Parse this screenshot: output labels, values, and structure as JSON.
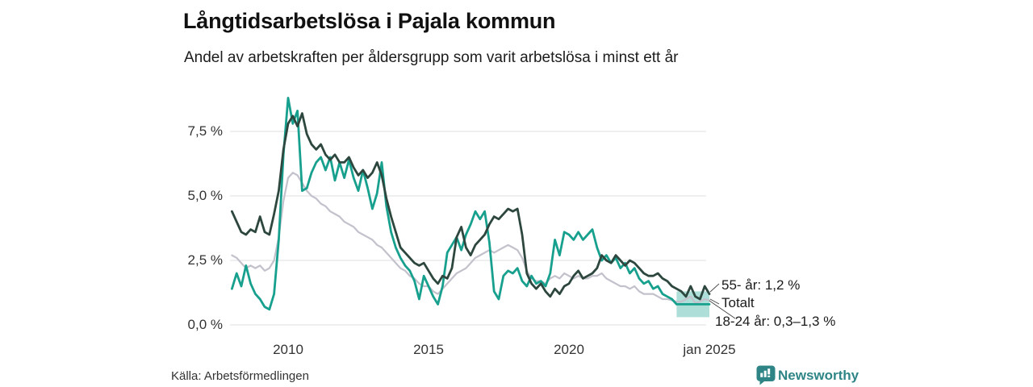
{
  "header": {
    "title": "Långtidsarbetslösa i Pajala kommun",
    "subtitle": "Andel av arbetskraften per åldersgrupp som varit arbetslösa i minst ett år"
  },
  "footer": {
    "source": "Källa: Arbetsförmedlingen",
    "brand": "Newsworthy"
  },
  "colors": {
    "series_55": "#2d473f",
    "series_total": "#c3c1cb",
    "series_18_24": "#18a08e",
    "band_fill": "#18a08e",
    "gridline": "#e5e5e9",
    "connector": "#444444",
    "brand_teal": "#2f8586",
    "text": "#1a1a1a"
  },
  "chart_data": {
    "type": "line",
    "title": "Långtidsarbetslösa i Pajala kommun",
    "subtitle": "Andel av arbetskraften per åldersgrupp som varit arbetslösa i minst ett år",
    "unit": "% av arbetskraften",
    "x_start": 2008,
    "points_per_year": 6,
    "x_axis": {
      "ticks": [
        {
          "label": "2010",
          "t": 2010
        },
        {
          "label": "2015",
          "t": 2015
        },
        {
          "label": "2020",
          "t": 2020
        },
        {
          "label": "jan 2025",
          "t": 2025
        }
      ]
    },
    "y_axis": {
      "range": [
        0,
        9
      ],
      "grid": true,
      "ticks": [
        {
          "label": "0,0 %",
          "value": 0
        },
        {
          "label": "2,5 %",
          "value": 2.5
        },
        {
          "label": "5,0 %",
          "value": 5
        },
        {
          "label": "7,5 %",
          "value": 7.5
        }
      ]
    },
    "series": [
      {
        "key": "55",
        "name": "55- år",
        "color": "#2d473f",
        "width": 2.8,
        "last_value": 1.2,
        "values": [
          4.4,
          4.0,
          3.6,
          3.5,
          3.7,
          3.6,
          4.2,
          3.6,
          3.5,
          4.3,
          5.2,
          6.8,
          7.8,
          8.1,
          7.7,
          8.2,
          7.4,
          7.0,
          6.8,
          7.0,
          6.6,
          6.4,
          6.6,
          6.3,
          6.3,
          6.5,
          6.1,
          5.8,
          6.0,
          5.7,
          5.9,
          6.3,
          5.8,
          4.9,
          4.2,
          3.6,
          3.0,
          2.8,
          2.6,
          2.4,
          2.3,
          2.4,
          2.1,
          1.8,
          1.6,
          1.9,
          1.8,
          2.2,
          3.4,
          3.8,
          3.0,
          2.7,
          3.1,
          3.3,
          3.5,
          3.9,
          4.2,
          4.1,
          4.3,
          4.5,
          4.4,
          4.5,
          3.5,
          2.0,
          1.6,
          1.4,
          1.6,
          1.3,
          1.1,
          1.4,
          1.2,
          1.5,
          1.6,
          1.9,
          2.1,
          1.8,
          1.9,
          2.0,
          2.2,
          2.7,
          2.5,
          2.4,
          2.7,
          2.5,
          2.3,
          2.5,
          2.4,
          2.2,
          2.0,
          1.9,
          1.9,
          2.0,
          1.8,
          1.7,
          1.5,
          1.4,
          1.3,
          1.1,
          1.5,
          1.1,
          1.0,
          1.5,
          1.2
        ]
      },
      {
        "key": "total",
        "name": "Totalt",
        "color": "#c3c1cb",
        "width": 2.2,
        "last_value": 0.95,
        "values": [
          2.7,
          2.6,
          2.4,
          2.2,
          2.3,
          2.2,
          2.3,
          2.1,
          2.2,
          2.5,
          3.4,
          4.8,
          5.7,
          5.9,
          5.8,
          5.5,
          5.2,
          5.0,
          4.9,
          4.7,
          4.6,
          4.4,
          4.3,
          4.2,
          4.0,
          3.9,
          3.8,
          3.6,
          3.5,
          3.4,
          3.3,
          3.1,
          3.0,
          2.8,
          2.6,
          2.4,
          2.2,
          2.1,
          1.9,
          1.8,
          1.6,
          1.5,
          1.5,
          1.3,
          1.2,
          1.4,
          1.6,
          1.8,
          2.0,
          2.1,
          2.2,
          2.4,
          2.6,
          2.7,
          2.8,
          2.9,
          2.8,
          2.9,
          3.0,
          3.1,
          3.0,
          2.9,
          2.6,
          2.1,
          1.8,
          1.7,
          1.7,
          1.6,
          1.8,
          1.9,
          1.8,
          2.0,
          1.9,
          1.8,
          1.9,
          1.8,
          1.8,
          1.9,
          1.9,
          2.0,
          1.8,
          1.7,
          1.6,
          1.5,
          1.5,
          1.4,
          1.5,
          1.3,
          1.2,
          1.2,
          1.2,
          1.1,
          1.0,
          1.0,
          0.95,
          0.9,
          0.9,
          1.0,
          1.1,
          0.85,
          0.9,
          1.0,
          0.95
        ]
      },
      {
        "key": "18-24",
        "name": "18-24 år",
        "color": "#18a08e",
        "width": 2.8,
        "last_value_range": [
          0.3,
          1.3
        ],
        "values": [
          1.4,
          2.0,
          1.5,
          2.3,
          1.6,
          1.2,
          1.0,
          0.7,
          0.6,
          1.2,
          3.3,
          6.6,
          8.8,
          7.8,
          8.3,
          5.2,
          5.3,
          5.9,
          6.3,
          6.5,
          6.0,
          6.5,
          5.6,
          6.3,
          5.7,
          6.4,
          5.7,
          5.2,
          6.0,
          5.3,
          4.5,
          5.1,
          6.3,
          4.6,
          3.6,
          3.0,
          2.6,
          2.3,
          2.1,
          1.7,
          1.0,
          1.9,
          1.5,
          1.1,
          0.8,
          1.5,
          2.8,
          3.1,
          3.4,
          2.9,
          3.5,
          3.9,
          4.4,
          4.1,
          4.4,
          3.2,
          1.3,
          1.0,
          1.9,
          2.1,
          2.0,
          2.2,
          1.7,
          1.5,
          1.9,
          1.6,
          1.7,
          1.5,
          2.0,
          3.3,
          2.7,
          3.6,
          3.5,
          3.3,
          3.6,
          3.3,
          3.5,
          3.7,
          3.0,
          2.5,
          2.7,
          2.4,
          2.6,
          2.2,
          2.4,
          2.0,
          2.2,
          1.8,
          1.6,
          1.7,
          1.4,
          1.5,
          1.2,
          1.1,
          1.0,
          0.8,
          0.8,
          0.8,
          0.8,
          0.8,
          0.8,
          0.8,
          0.8
        ]
      }
    ],
    "draw_order": [
      1,
      2,
      0
    ],
    "uncertainty_band": {
      "series": "18-24 år",
      "t_start": 2023.833,
      "t_end": 2025,
      "low": 0.3,
      "high": 1.3,
      "color": "#18a08e",
      "opacity": 0.35
    },
    "annotations": [
      {
        "label": "55- år: 1,2 %"
      },
      {
        "label": "Totalt"
      },
      {
        "label": "18-24 år: 0,3–1,3 %"
      }
    ]
  }
}
